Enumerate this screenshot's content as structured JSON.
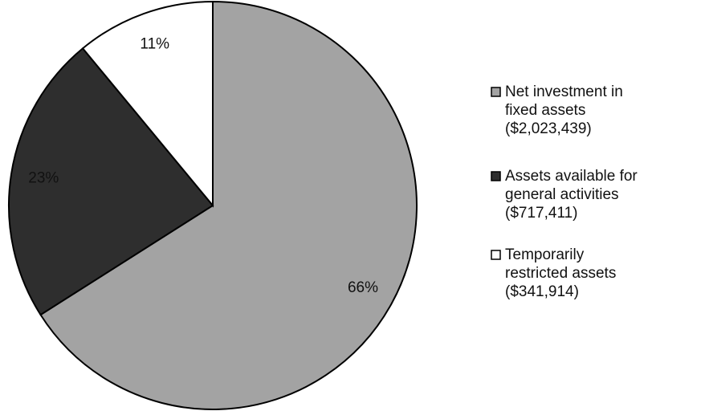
{
  "chart_data": {
    "type": "pie",
    "categories": [
      "Net investment in fixed assets ($2,023,439)",
      "Assets available for general activities ($717,411)",
      "Temporarily restricted assets ($341,914)"
    ],
    "values": [
      66,
      23,
      11
    ],
    "value_labels": [
      "66%",
      "23%",
      "11%"
    ],
    "colors": [
      "#a3a3a3",
      "#2e2e2e",
      "#ffffff"
    ],
    "legend": "right"
  }
}
